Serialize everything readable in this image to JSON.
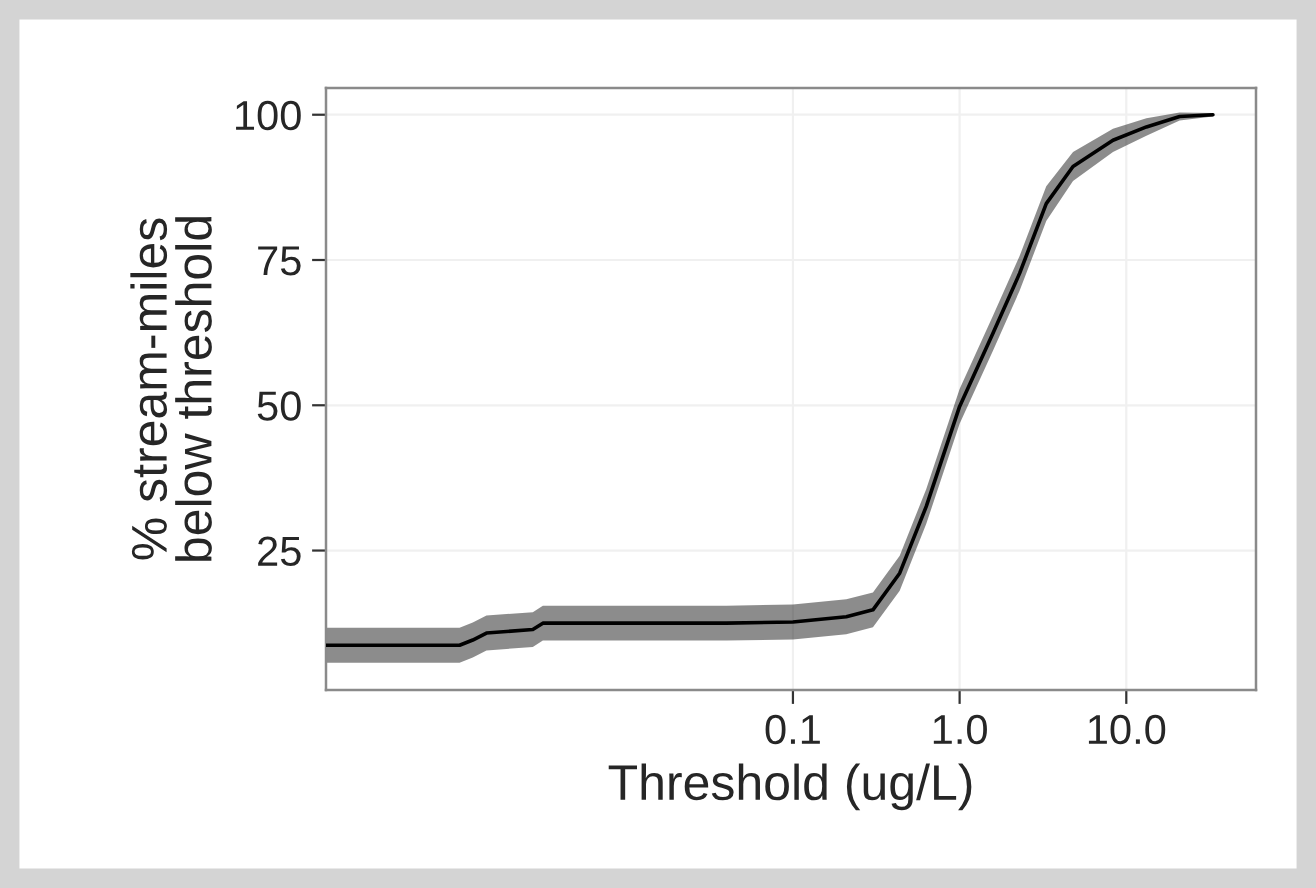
{
  "chart_data": {
    "type": "line",
    "xlabel": "Threshold (ug/L)",
    "ylabel": "% stream-miles\nbelow threshold",
    "log": "x",
    "grid": true,
    "xlim": [
      0.000158,
      60
    ],
    "ylim": [
      1,
      104.6
    ],
    "xticks": [
      {
        "value": 0.1,
        "label": "0.1"
      },
      {
        "value": 1,
        "label": "1.0"
      },
      {
        "value": 10,
        "label": "10.0"
      }
    ],
    "yticks": [
      25,
      50,
      75,
      100
    ],
    "series": [
      {
        "color": "#000000",
        "x": [
          0.000158,
          0.001,
          0.0012,
          0.00145,
          0.00275,
          0.00316,
          0.0398,
          0.1,
          0.209,
          0.302,
          0.437,
          0.631,
          1,
          1.585,
          2.29,
          3.31,
          4.79,
          8.32,
          13.2,
          20.9,
          33.1
        ],
        "values": [
          8.7,
          8.7,
          9.6,
          10.8,
          11.4,
          12.5,
          12.5,
          12.7,
          13.6,
          14.8,
          21.1,
          32.6,
          49.8,
          62.4,
          72.7,
          84.7,
          91.1,
          95.6,
          97.9,
          99.7,
          100
        ],
        "lower": [
          5.7,
          5.7,
          6.6,
          7.8,
          8.4,
          9.5,
          9.5,
          9.7,
          10.6,
          11.8,
          18.1,
          29.6,
          46.8,
          59.4,
          69.7,
          81.7,
          88.6,
          93.6,
          96.4,
          99.0,
          99.7
        ],
        "upper": [
          11.7,
          11.7,
          12.6,
          13.8,
          14.4,
          15.5,
          15.5,
          15.7,
          16.6,
          17.8,
          24.1,
          35.6,
          52.8,
          65.4,
          75.7,
          87.7,
          93.6,
          97.6,
          99.4,
          100.4,
          100.3
        ]
      }
    ]
  }
}
